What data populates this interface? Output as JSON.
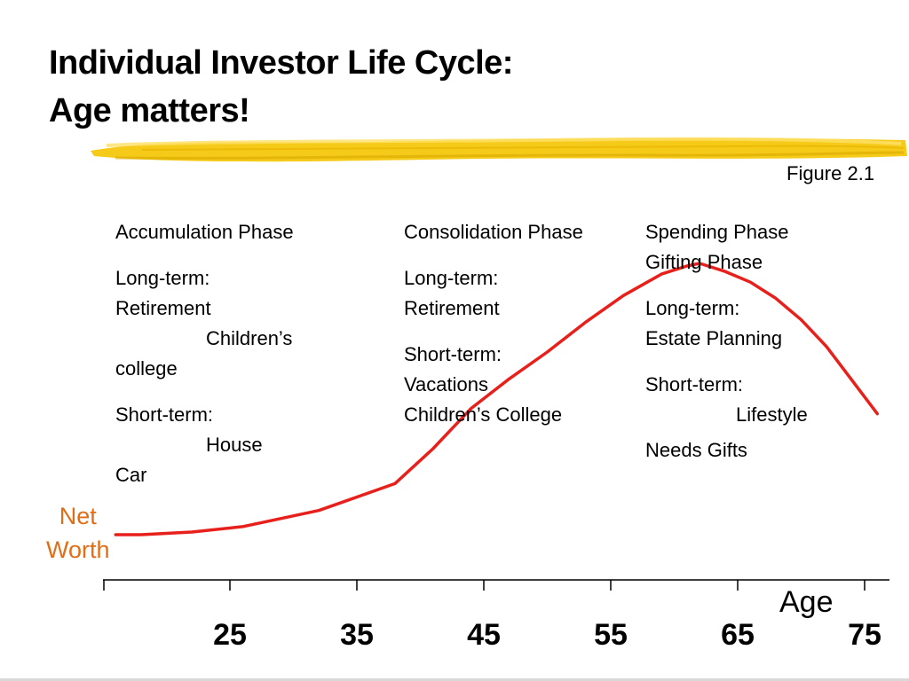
{
  "title": {
    "line1": "Individual Investor Life Cycle:",
    "line2": "Age matters!"
  },
  "figure_label": "Figure 2.1",
  "phases": {
    "accumulation": {
      "heading": "Accumulation Phase",
      "lt_label": "Long-term:",
      "lt_item1": "Retirement",
      "lt_item2a": "Children’s",
      "lt_item2b": "college",
      "st_label": "Short-term:",
      "st_item1": "House",
      "st_item2": "Car"
    },
    "consolidation": {
      "heading": "Consolidation Phase",
      "lt_label": "Long-term:",
      "lt_item1": "Retirement",
      "st_label": "Short-term:",
      "st_item1": "Vacations",
      "st_item2": "Children’s College"
    },
    "spending": {
      "heading1": "Spending Phase",
      "heading2": "Gifting Phase",
      "lt_label": "Long-term:",
      "lt_item1": "Estate Planning",
      "st_label": "Short-term:",
      "st_item1": "Lifestyle",
      "st_item2": "Needs  Gifts"
    }
  },
  "axis_labels": {
    "ylabel_line1": "Net",
    "ylabel_line2": "Worth",
    "xlabel": "Age"
  },
  "colors": {
    "curve": "#e8201b",
    "net_worth_label": "#e06e17",
    "highlight": "#f5c400"
  },
  "chart_data": {
    "type": "line",
    "xlabel": "Age",
    "ylabel": "Net Worth",
    "x_ticks": [
      25,
      35,
      45,
      55,
      65,
      75
    ],
    "xlim": [
      15,
      77
    ],
    "ylim": [
      0,
      100
    ],
    "series": [
      {
        "x": [
          16,
          18,
          22,
          26,
          32,
          38,
          41,
          44,
          47,
          50,
          53,
          56,
          59,
          61,
          62,
          64,
          66,
          68,
          70,
          72,
          76
        ],
        "y": [
          0,
          0,
          1,
          3,
          9,
          19,
          32,
          47,
          58,
          68,
          79,
          89,
          97,
          100,
          101,
          98,
          94,
          88,
          80,
          70,
          45
        ]
      }
    ]
  }
}
